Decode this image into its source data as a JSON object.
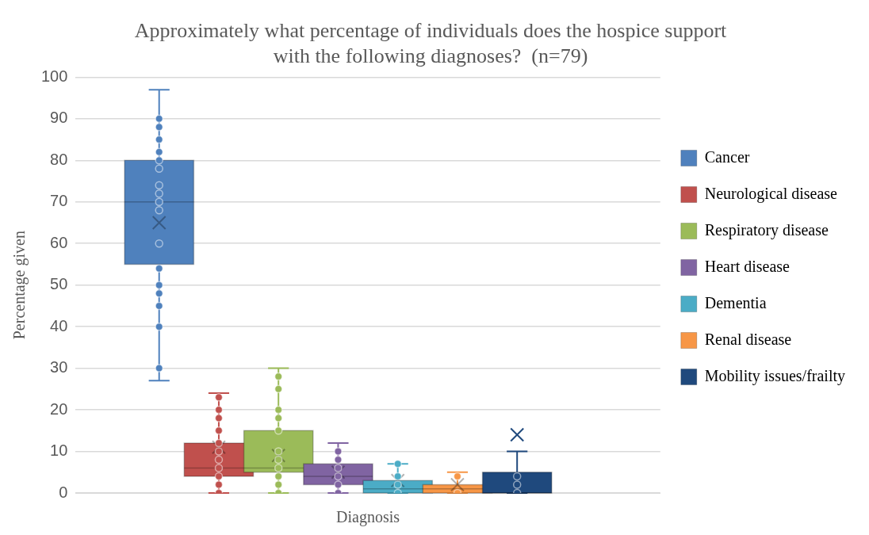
{
  "chart_data": {
    "type": "box",
    "title": "Approximately what percentage of individuals does the hospice support with the following diagnoses?  (n=79)",
    "xlabel": "Diagnosis",
    "ylabel": "Percentage given",
    "categories": [
      null
    ],
    "ylim": [
      0,
      100
    ],
    "yticks": [
      0,
      10,
      20,
      30,
      40,
      50,
      60,
      70,
      80,
      90,
      100
    ],
    "grid": "y",
    "legend": "right",
    "series": [
      {
        "name": "Cancer",
        "color": "#4f81bd",
        "boxes": [
          {
            "low": 27,
            "q1": 55,
            "median": 70,
            "q3": 80,
            "high": 97,
            "mean": 65,
            "outliers": [
              90,
              88,
              85,
              82,
              80,
              78,
              74,
              72,
              70,
              68,
              60,
              54,
              50,
              48,
              45,
              40,
              30
            ]
          }
        ]
      },
      {
        "name": "Neurological disease",
        "color": "#c0504d",
        "boxes": [
          {
            "low": 0,
            "q1": 4,
            "median": 6,
            "q3": 12,
            "high": 24,
            "mean": 11,
            "outliers": [
              23,
              20,
              18,
              15,
              12,
              10,
              8,
              6,
              4,
              2,
              0
            ]
          }
        ]
      },
      {
        "name": "Respiratory disease",
        "color": "#9bbb59",
        "boxes": [
          {
            "low": 0,
            "q1": 5,
            "median": 6,
            "q3": 15,
            "high": 30,
            "mean": 9,
            "outliers": [
              28,
              25,
              20,
              18,
              15,
              10,
              8,
              6,
              4,
              2,
              0
            ]
          }
        ]
      },
      {
        "name": "Heart disease",
        "color": "#8064a2",
        "boxes": [
          {
            "low": 0,
            "q1": 2,
            "median": 4,
            "q3": 7,
            "high": 12,
            "mean": 5,
            "outliers": [
              10,
              8,
              6,
              4,
              2,
              0
            ]
          }
        ]
      },
      {
        "name": "Dementia",
        "color": "#4bacc6",
        "boxes": [
          {
            "low": 0,
            "q1": 0,
            "median": 1,
            "q3": 3,
            "high": 7,
            "mean": 3,
            "outliers": [
              7,
              4,
              2,
              0
            ]
          }
        ]
      },
      {
        "name": "Renal disease",
        "color": "#f79646",
        "boxes": [
          {
            "low": 0,
            "q1": 0,
            "median": 1,
            "q3": 2,
            "high": 5,
            "mean": 2,
            "outliers": [
              4,
              0
            ]
          }
        ]
      },
      {
        "name": "Mobility issues/frailty",
        "color": "#1f497d",
        "boxes": [
          {
            "low": 0,
            "q1": 0,
            "median": 0,
            "q3": 5,
            "high": 10,
            "mean": 14,
            "outliers": [
              4,
              2,
              0
            ]
          }
        ]
      }
    ]
  }
}
